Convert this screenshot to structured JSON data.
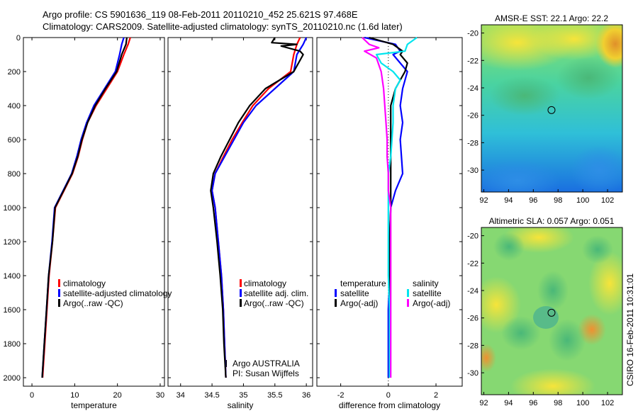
{
  "header": {
    "line1": "Argo profile: CS 5901636_119 08-Feb-2011 20110210_452 25.621S 97.468E",
    "line2": "Climatology: CARS2009. Satellite-adjusted climatology: synTS_20110210.nc (1.6d later)"
  },
  "side_label": "CSIRO 16-Feb-2011 10:31:01",
  "colors": {
    "climatology": "#ff0000",
    "satellite": "#0000ff",
    "argo": "#000000",
    "sal_satellite": "#00e5ee",
    "sal_argo": "#ff00ff"
  },
  "chart_data": [
    {
      "type": "line",
      "id": "temperature",
      "xlabel": "temperature",
      "xlim": [
        -2,
        31
      ],
      "ylim": [
        0,
        2050
      ],
      "ydir": "reverse",
      "xticks": [
        "0",
        "10",
        "20",
        "30"
      ],
      "yticks": [
        "0",
        "200",
        "400",
        "600",
        "800",
        "1000",
        "1200",
        "1400",
        "1600",
        "1800",
        "2000"
      ],
      "legend": [
        "climatology",
        "satellite-adjusted climatology",
        "Argo(..raw -QC)"
      ],
      "series": [
        {
          "name": "climatology",
          "color": "#ff0000",
          "points": [
            [
              23,
              0
            ],
            [
              22.5,
              40
            ],
            [
              21.5,
              100
            ],
            [
              20,
              200
            ],
            [
              17.5,
              300
            ],
            [
              15,
              400
            ],
            [
              13,
              500
            ],
            [
              11.8,
              600
            ],
            [
              10.8,
              700
            ],
            [
              9.5,
              800
            ],
            [
              7.5,
              900
            ],
            [
              5.5,
              1000
            ],
            [
              4.8,
              1200
            ],
            [
              4,
              1400
            ],
            [
              3.5,
              1600
            ],
            [
              3,
              1800
            ],
            [
              2.5,
              2000
            ]
          ]
        },
        {
          "name": "satellite-adjusted climatology",
          "color": "#0000ff",
          "points": [
            [
              21.5,
              0
            ],
            [
              21,
              40
            ],
            [
              20.5,
              100
            ],
            [
              19.5,
              200
            ],
            [
              17,
              300
            ],
            [
              14.5,
              400
            ],
            [
              12.8,
              500
            ],
            [
              11.5,
              600
            ],
            [
              10.5,
              700
            ],
            [
              9.3,
              800
            ],
            [
              7.3,
              900
            ],
            [
              5.3,
              1000
            ],
            [
              4.7,
              1200
            ],
            [
              3.9,
              1400
            ],
            [
              3.4,
              1600
            ],
            [
              2.9,
              1800
            ],
            [
              2.4,
              2000
            ]
          ]
        },
        {
          "name": "Argo(..raw -QC)",
          "color": "#000000",
          "points": [
            [
              22.2,
              0
            ],
            [
              22,
              40
            ],
            [
              21,
              100
            ],
            [
              19.8,
              200
            ],
            [
              17.2,
              300
            ],
            [
              14.8,
              400
            ],
            [
              13,
              500
            ],
            [
              11.7,
              600
            ],
            [
              10.7,
              700
            ],
            [
              9.4,
              800
            ],
            [
              7.4,
              900
            ],
            [
              5.4,
              1000
            ],
            [
              4.8,
              1200
            ],
            [
              3.9,
              1400
            ],
            [
              3.4,
              1600
            ],
            [
              2.9,
              1800
            ],
            [
              2.4,
              2000
            ]
          ]
        }
      ]
    },
    {
      "type": "line",
      "id": "salinity",
      "xlabel": "salinity",
      "xlim": [
        33.8,
        36.1
      ],
      "ylim": [
        0,
        2050
      ],
      "ydir": "reverse",
      "xticks": [
        "34",
        "34.5",
        "35",
        "35.5",
        "36"
      ],
      "legend": [
        "climatology",
        "satellite adj. clim.",
        "Argo(..raw -QC)"
      ],
      "annotations": [
        "Argo AUSTRALIA",
        "PI: Susan Wijffels"
      ],
      "series": [
        {
          "name": "climatology",
          "color": "#ff0000",
          "points": [
            [
              35.9,
              0
            ],
            [
              35.85,
              40
            ],
            [
              35.8,
              100
            ],
            [
              35.75,
              200
            ],
            [
              35.4,
              300
            ],
            [
              35.15,
              400
            ],
            [
              34.98,
              500
            ],
            [
              34.82,
              600
            ],
            [
              34.68,
              700
            ],
            [
              34.55,
              800
            ],
            [
              34.5,
              900
            ],
            [
              34.55,
              1000
            ],
            [
              34.6,
              1200
            ],
            [
              34.65,
              1400
            ],
            [
              34.68,
              1600
            ],
            [
              34.7,
              1800
            ],
            [
              34.72,
              2000
            ]
          ]
        },
        {
          "name": "satellite adj. clim.",
          "color": "#0000ff",
          "points": [
            [
              36.0,
              0
            ],
            [
              35.95,
              40
            ],
            [
              35.85,
              100
            ],
            [
              35.8,
              200
            ],
            [
              35.5,
              300
            ],
            [
              35.2,
              400
            ],
            [
              35.0,
              500
            ],
            [
              34.85,
              600
            ],
            [
              34.7,
              700
            ],
            [
              34.55,
              800
            ],
            [
              34.5,
              900
            ],
            [
              34.55,
              1000
            ],
            [
              34.6,
              1200
            ],
            [
              34.65,
              1400
            ],
            [
              34.68,
              1600
            ],
            [
              34.7,
              1800
            ],
            [
              34.72,
              2000
            ]
          ]
        },
        {
          "name": "Argo(..raw -QC)",
          "color": "#000000",
          "points": [
            [
              35.5,
              0
            ],
            [
              35.45,
              30
            ],
            [
              35.85,
              40
            ],
            [
              35.6,
              50
            ],
            [
              35.9,
              80
            ],
            [
              35.95,
              100
            ],
            [
              35.8,
              200
            ],
            [
              35.35,
              300
            ],
            [
              35.1,
              400
            ],
            [
              34.92,
              500
            ],
            [
              34.78,
              600
            ],
            [
              34.64,
              700
            ],
            [
              34.52,
              800
            ],
            [
              34.48,
              900
            ],
            [
              34.52,
              1000
            ],
            [
              34.58,
              1200
            ],
            [
              34.63,
              1400
            ],
            [
              34.67,
              1600
            ],
            [
              34.69,
              1800
            ],
            [
              34.72,
              2000
            ]
          ]
        }
      ]
    },
    {
      "type": "line",
      "id": "difference",
      "xlabel": "difference from climatology",
      "xlim": [
        -3,
        3.1
      ],
      "ylim": [
        0,
        2050
      ],
      "ydir": "reverse",
      "xticks": [
        "-2",
        "0",
        "2"
      ],
      "legend": [
        "temperature",
        "satellite",
        "Argo(-adj)",
        "salinity",
        "satellite",
        "Argo(-adj)"
      ],
      "series": [
        {
          "name": "temperature satellite",
          "color": "#0000ff",
          "points": [
            [
              -1,
              0
            ],
            [
              0.3,
              40
            ],
            [
              0.5,
              80
            ],
            [
              0.2,
              100
            ],
            [
              0.5,
              150
            ],
            [
              0.8,
              200
            ],
            [
              0.6,
              300
            ],
            [
              0.5,
              400
            ],
            [
              0.6,
              500
            ],
            [
              0.5,
              600
            ],
            [
              0.55,
              700
            ],
            [
              0.6,
              800
            ],
            [
              0.3,
              900
            ],
            [
              0.1,
              1000
            ],
            [
              0.05,
              1200
            ],
            [
              0.05,
              1400
            ],
            [
              0,
              1600
            ],
            [
              0,
              1800
            ],
            [
              0,
              2000
            ]
          ]
        },
        {
          "name": "temperature Argo(-adj)",
          "color": "#000000",
          "points": [
            [
              -0.8,
              0
            ],
            [
              0.2,
              40
            ],
            [
              0.6,
              80
            ],
            [
              0.5,
              100
            ],
            [
              0.8,
              150
            ],
            [
              0.7,
              200
            ],
            [
              0.3,
              300
            ],
            [
              0.1,
              400
            ],
            [
              0.1,
              500
            ],
            [
              0.1,
              600
            ],
            [
              0.1,
              700
            ],
            [
              0.1,
              800
            ],
            [
              0.1,
              900
            ],
            [
              0.1,
              1000
            ],
            [
              0.05,
              1200
            ],
            [
              0.05,
              1400
            ],
            [
              0.05,
              1600
            ],
            [
              0.05,
              1800
            ],
            [
              0.05,
              2000
            ]
          ]
        },
        {
          "name": "salinity satellite",
          "color": "#00e5ee",
          "points": [
            [
              1.2,
              0
            ],
            [
              0.8,
              40
            ],
            [
              0.7,
              80
            ],
            [
              -0.5,
              100
            ],
            [
              -0.3,
              150
            ],
            [
              0.2,
              200
            ],
            [
              0.5,
              250
            ],
            [
              0.3,
              300
            ],
            [
              0.2,
              400
            ],
            [
              0.2,
              500
            ],
            [
              0.15,
              600
            ],
            [
              0.1,
              700
            ],
            [
              0,
              800
            ],
            [
              0,
              1000
            ],
            [
              0,
              1200
            ],
            [
              0,
              1400
            ],
            [
              0.05,
              1600
            ],
            [
              0.05,
              1800
            ],
            [
              0.05,
              2000
            ]
          ]
        },
        {
          "name": "salinity Argo(-adj)",
          "color": "#ff00ff",
          "points": [
            [
              -1.1,
              0
            ],
            [
              -0.8,
              40
            ],
            [
              -0.4,
              60
            ],
            [
              -1.0,
              80
            ],
            [
              -0.5,
              120
            ],
            [
              -0.3,
              200
            ],
            [
              -0.2,
              300
            ],
            [
              -0.15,
              400
            ],
            [
              -0.1,
              500
            ],
            [
              -0.05,
              600
            ],
            [
              -0.05,
              700
            ],
            [
              0,
              800
            ],
            [
              0,
              900
            ],
            [
              0.1,
              1000
            ],
            [
              0.1,
              1200
            ],
            [
              0.1,
              1400
            ],
            [
              0.1,
              1600
            ],
            [
              0.1,
              1800
            ],
            [
              0.1,
              2000
            ]
          ]
        }
      ]
    },
    {
      "type": "heatmap",
      "id": "sst-map",
      "title": "AMSR-E SST: 22.1  Argo: 22.2",
      "xlim": [
        91.8,
        103.2
      ],
      "ylim": [
        -31.6,
        -19.4
      ],
      "xticks": [
        "92",
        "94",
        "96",
        "98",
        "100",
        "102"
      ],
      "yticks": [
        "-20",
        "-22",
        "-24",
        "-26",
        "-28",
        "-30"
      ],
      "marker": {
        "lon": 97.47,
        "lat": -25.62
      }
    },
    {
      "type": "heatmap",
      "id": "sla-map",
      "title": "Altimetric SLA: 0.057  Argo: 0.051",
      "xlim": [
        91.8,
        103.2
      ],
      "ylim": [
        -31.6,
        -19.4
      ],
      "xticks": [
        "92",
        "94",
        "96",
        "98",
        "100",
        "102"
      ],
      "yticks": [
        "-20",
        "-22",
        "-24",
        "-26",
        "-28",
        "-30"
      ],
      "marker": {
        "lon": 97.47,
        "lat": -25.62
      }
    }
  ]
}
